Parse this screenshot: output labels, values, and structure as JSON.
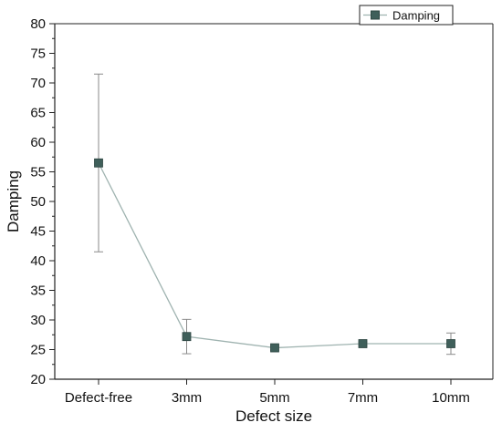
{
  "chart_data": {
    "type": "line",
    "title": "",
    "xlabel": "Defect size",
    "ylabel": "Damping",
    "categories": [
      "Defect-free",
      "3mm",
      "5mm",
      "7mm",
      "10mm"
    ],
    "ylim": [
      20,
      80
    ],
    "yticks": [
      "20",
      "25",
      "30",
      "35",
      "40",
      "45",
      "50",
      "55",
      "60",
      "65",
      "70",
      "75",
      "80"
    ],
    "grid": false,
    "legend_position": "top-right",
    "series": [
      {
        "name": "Damping",
        "values": [
          56.5,
          27.2,
          25.3,
          26.0,
          26.0
        ],
        "error": [
          15.0,
          2.9,
          0.4,
          0.3,
          1.8
        ],
        "marker": "square",
        "color": "#3f5f5a",
        "line_color": "#9fb3b0"
      }
    ]
  }
}
